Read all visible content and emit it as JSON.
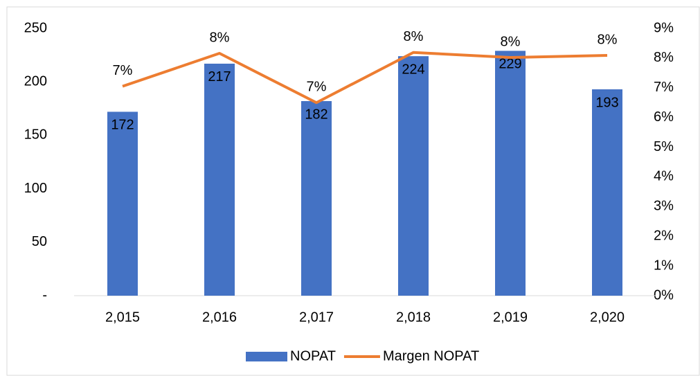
{
  "chart_data": {
    "type": "bar",
    "categories": [
      "2,015",
      "2,016",
      "2,017",
      "2,018",
      "2,019",
      "2,020"
    ],
    "series": [
      {
        "name": "NOPAT",
        "type": "bar",
        "color": "#4472c4",
        "values": [
          172,
          217,
          182,
          224,
          229,
          193
        ]
      },
      {
        "name": "Margen NOPAT",
        "type": "line",
        "axis": "y2",
        "color": "#ed7d31",
        "values": [
          7.05,
          8.16,
          6.5,
          8.19,
          8.02,
          8.09
        ],
        "value_labels": [
          "7%",
          "8%",
          "7%",
          "8%",
          "8%",
          "8%"
        ]
      }
    ],
    "ylim": [
      0,
      250
    ],
    "yticks": [
      {
        "value": 0,
        "label": "-"
      },
      50,
      100,
      150,
      200,
      250
    ],
    "y2lim": [
      0,
      9
    ],
    "y2ticks": [
      {
        "value": 0,
        "label": "0%"
      },
      {
        "value": 1,
        "label": "1%"
      },
      {
        "value": 2,
        "label": "2%"
      },
      {
        "value": 3,
        "label": "3%"
      },
      {
        "value": 4,
        "label": "4%"
      },
      {
        "value": 5,
        "label": "5%"
      },
      {
        "value": 6,
        "label": "6%"
      },
      {
        "value": 7,
        "label": "7%"
      },
      {
        "value": 8,
        "label": "8%"
      },
      {
        "value": 9,
        "label": "9%"
      }
    ],
    "legend": "bottom"
  }
}
